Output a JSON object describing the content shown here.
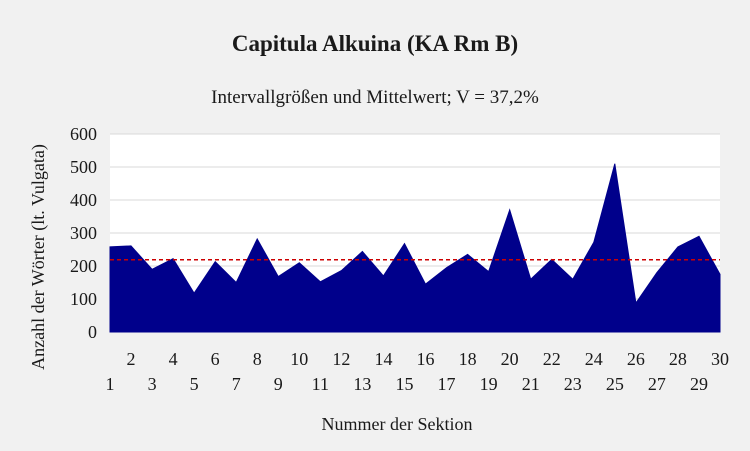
{
  "chart_data": {
    "type": "area",
    "title": "Capitula Alkuina (KA Rm B)",
    "subtitle": "Intervallgrößen und Mittelwert; V = 37,2%",
    "xlabel": "Nummer der Sektion",
    "ylabel": "Anzahl der Wörter (lt. Vulgata)",
    "x": [
      1,
      2,
      3,
      4,
      5,
      6,
      7,
      8,
      9,
      10,
      11,
      12,
      13,
      14,
      15,
      16,
      17,
      18,
      19,
      20,
      21,
      22,
      23,
      24,
      25,
      26,
      27,
      28,
      29,
      30
    ],
    "series": [
      {
        "values": [
          258,
          261,
          190,
          222,
          118,
          213,
          150,
          282,
          168,
          210,
          152,
          186,
          244,
          170,
          268,
          145,
          195,
          235,
          183,
          370,
          160,
          220,
          160,
          272,
          510,
          88,
          180,
          258,
          290,
          175
        ]
      }
    ],
    "mean": 219,
    "ylim": [
      0,
      600
    ],
    "yticks": [
      0,
      100,
      200,
      300,
      400,
      500,
      600
    ],
    "xticks_even": [
      2,
      4,
      6,
      8,
      10,
      12,
      14,
      16,
      18,
      20,
      22,
      24,
      26,
      28,
      30
    ],
    "xticks_odd": [
      1,
      3,
      5,
      7,
      9,
      11,
      13,
      15,
      17,
      19,
      21,
      23,
      25,
      27,
      29
    ],
    "grid": true,
    "legend": "none",
    "colors": {
      "area": "#00008b",
      "mean_line": "#cc0000",
      "plot_bg": "#ffffff",
      "chart_bg": "#f1f1f1",
      "grid": "#d9d9d9"
    }
  }
}
